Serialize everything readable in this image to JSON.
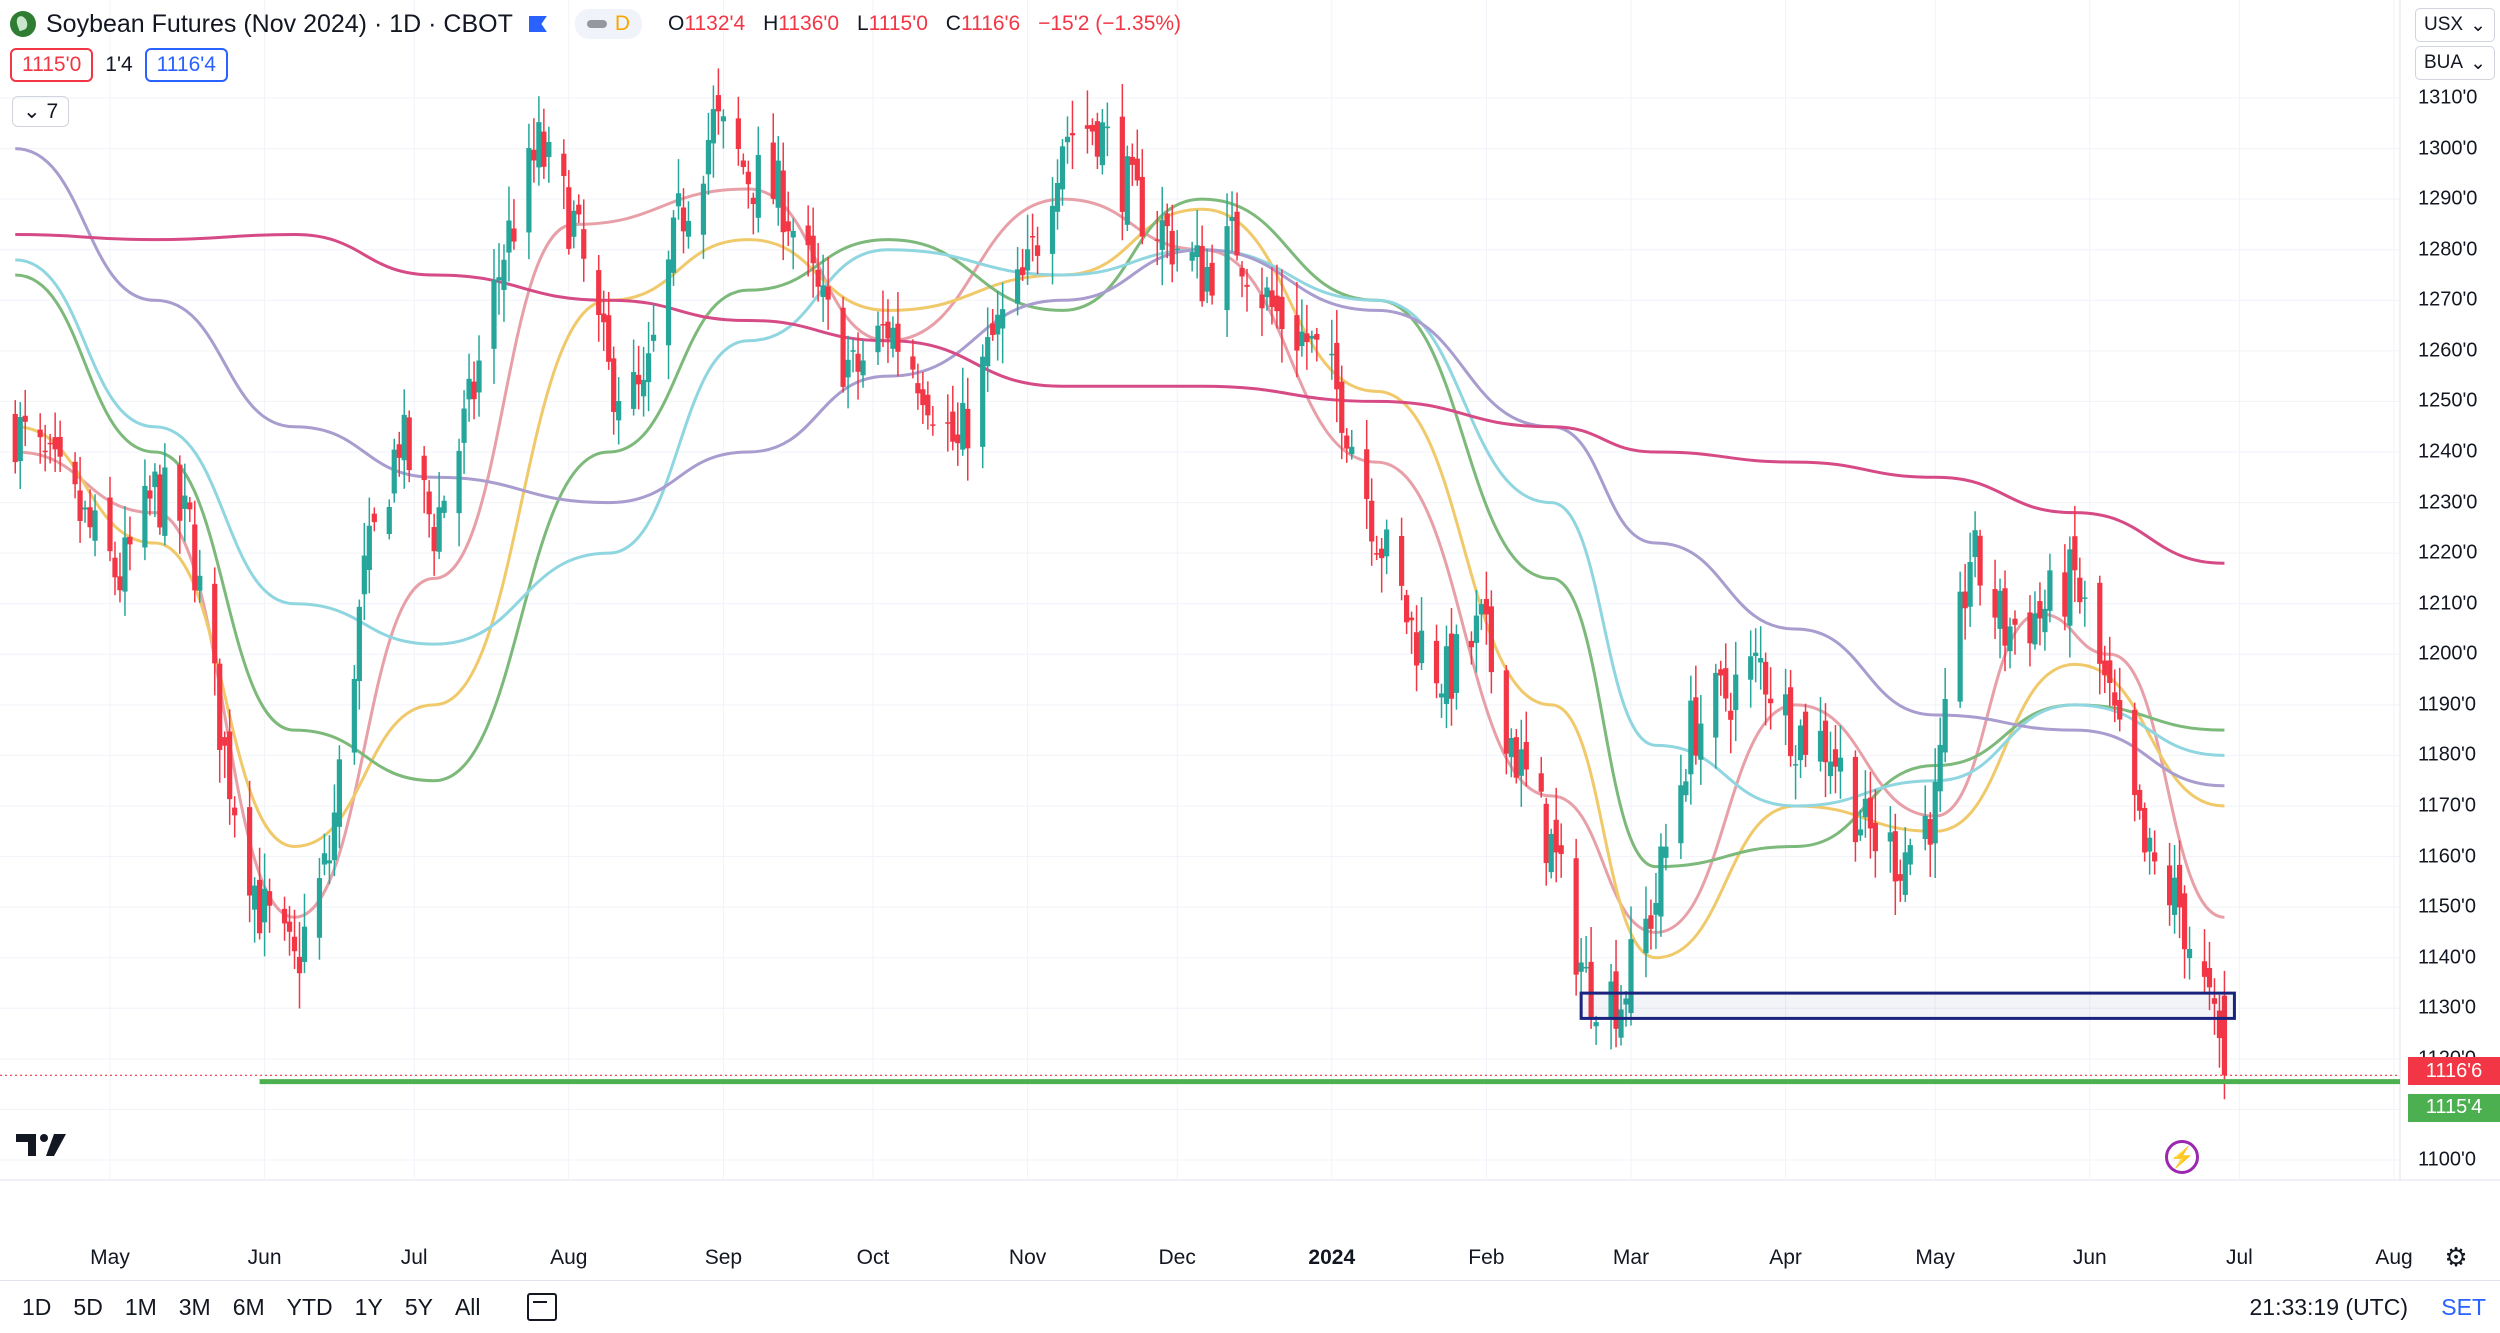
{
  "header": {
    "title": "Soybean Futures (Nov 2024) · 1D · CBOT",
    "interval_badge": "D",
    "ohlc": {
      "open_label": "O",
      "open": "1132'4",
      "high_label": "H",
      "high": "1136'0",
      "low_label": "L",
      "low": "1115'0",
      "close_label": "C",
      "close": "1116'6",
      "change": "−15'2 (−1.35%)"
    }
  },
  "quote": {
    "bid": "1115'0",
    "spread": "1'4",
    "ask": "1116'4"
  },
  "indicators_toggle": "7",
  "axis_selectors": {
    "currency": "USX",
    "unit": "BUA"
  },
  "price_tags": {
    "last": "1116'6",
    "level": "1115'4"
  },
  "bottom": {
    "ranges": [
      "1D",
      "5D",
      "1M",
      "3M",
      "6M",
      "YTD",
      "1Y",
      "5Y",
      "All"
    ],
    "clock": "21:33:19 (UTC)",
    "session": "SET"
  },
  "colors": {
    "up": "#26a69a",
    "down": "#f23645",
    "ma_fast": "#e8a0a8",
    "ma_mid": "#f0c96a",
    "ma_green": "#7cb97a",
    "ma_cyan": "#8fd6e0",
    "ma_purple": "#a99ccf",
    "ma_magenta": "#d64a86",
    "support": "#4caf50",
    "box": "#1a237e"
  },
  "chart_data": {
    "type": "candlestick",
    "title": "Soybean Futures (Nov 2024) · 1D · CBOT",
    "x_tick_labels": [
      "May",
      "Jun",
      "Jul",
      "Aug",
      "Sep",
      "Oct",
      "Nov",
      "Dec",
      "2024",
      "Feb",
      "Mar",
      "Apr",
      "May",
      "Jun",
      "Jul",
      "Aug"
    ],
    "x_tick_months": [
      "2023-05",
      "2023-06",
      "2023-07",
      "2023-08",
      "2023-09",
      "2023-10",
      "2023-11",
      "2023-12",
      "2024-01",
      "2024-02",
      "2024-03",
      "2024-04",
      "2024-05",
      "2024-06",
      "2024-07",
      "2024-08"
    ],
    "y_ticks": [
      "1100'0",
      "1110'0",
      "1120'0",
      "1130'0",
      "1140'0",
      "1150'0",
      "1160'0",
      "1170'0",
      "1180'0",
      "1190'0",
      "1200'0",
      "1210'0",
      "1220'0",
      "1230'0",
      "1240'0",
      "1250'0",
      "1260'0",
      "1270'0",
      "1280'0",
      "1290'0",
      "1300'0",
      "1310'0"
    ],
    "ylim": [
      1100,
      1313
    ],
    "close_path": [
      [
        "2023-04-12",
        1245
      ],
      [
        "2023-04-22",
        1232
      ],
      [
        "2023-05-03",
        1215
      ],
      [
        "2023-05-10",
        1232
      ],
      [
        "2023-05-17",
        1225
      ],
      [
        "2023-05-24",
        1180
      ],
      [
        "2023-05-31",
        1150
      ],
      [
        "2023-06-07",
        1138
      ],
      [
        "2023-06-14",
        1160
      ],
      [
        "2023-06-21",
        1215
      ],
      [
        "2023-06-28",
        1243
      ],
      [
        "2023-07-05",
        1225
      ],
      [
        "2023-07-12",
        1248
      ],
      [
        "2023-07-19",
        1280
      ],
      [
        "2023-07-26",
        1300
      ],
      [
        "2023-08-02",
        1285
      ],
      [
        "2023-08-09",
        1255
      ],
      [
        "2023-08-16",
        1250
      ],
      [
        "2023-08-23",
        1285
      ],
      [
        "2023-08-30",
        1305
      ],
      [
        "2023-09-06",
        1295
      ],
      [
        "2023-09-13",
        1290
      ],
      [
        "2023-09-20",
        1270
      ],
      [
        "2023-09-27",
        1255
      ],
      [
        "2023-10-04",
        1265
      ],
      [
        "2023-10-11",
        1255
      ],
      [
        "2023-10-18",
        1240
      ],
      [
        "2023-10-25",
        1262
      ],
      [
        "2023-11-01",
        1275
      ],
      [
        "2023-11-08",
        1303
      ],
      [
        "2023-11-15",
        1305
      ],
      [
        "2023-11-22",
        1290
      ],
      [
        "2023-11-29",
        1283
      ],
      [
        "2023-12-06",
        1275
      ],
      [
        "2023-12-13",
        1282
      ],
      [
        "2023-12-20",
        1268
      ],
      [
        "2023-12-27",
        1262
      ],
      [
        "2024-01-03",
        1250
      ],
      [
        "2024-01-10",
        1225
      ],
      [
        "2024-01-17",
        1205
      ],
      [
        "2024-01-24",
        1195
      ],
      [
        "2024-01-31",
        1205
      ],
      [
        "2024-02-07",
        1180
      ],
      [
        "2024-02-14",
        1162
      ],
      [
        "2024-02-21",
        1135
      ],
      [
        "2024-02-28",
        1132
      ],
      [
        "2024-03-06",
        1152
      ],
      [
        "2024-03-13",
        1185
      ],
      [
        "2024-03-20",
        1192
      ],
      [
        "2024-03-27",
        1198
      ],
      [
        "2024-04-03",
        1185
      ],
      [
        "2024-04-10",
        1182
      ],
      [
        "2024-04-17",
        1165
      ],
      [
        "2024-04-24",
        1160
      ],
      [
        "2024-05-01",
        1170
      ],
      [
        "2024-05-08",
        1220
      ],
      [
        "2024-05-15",
        1205
      ],
      [
        "2024-05-22",
        1208
      ],
      [
        "2024-05-29",
        1215
      ],
      [
        "2024-06-05",
        1190
      ],
      [
        "2024-06-12",
        1160
      ],
      [
        "2024-06-19",
        1150
      ],
      [
        "2024-06-25",
        1130
      ],
      [
        "2024-06-28",
        1116.75
      ]
    ],
    "last_close": 1116.75,
    "support_level": 1115.5,
    "support_from": "2023-05-31",
    "zone": {
      "from": "2024-02-20",
      "to": "2024-06-30",
      "low": 1128,
      "high": 1133
    },
    "series": [
      {
        "color_key": "ma_fast",
        "path": [
          [
            "2023-04-12",
            1240
          ],
          [
            "2023-05-10",
            1228
          ],
          [
            "2023-06-07",
            1148
          ],
          [
            "2023-07-05",
            1215
          ],
          [
            "2023-08-02",
            1285
          ],
          [
            "2023-09-06",
            1292
          ],
          [
            "2023-10-04",
            1262
          ],
          [
            "2023-11-08",
            1290
          ],
          [
            "2023-12-06",
            1280
          ],
          [
            "2024-01-10",
            1238
          ],
          [
            "2024-02-14",
            1172
          ],
          [
            "2024-03-06",
            1145
          ],
          [
            "2024-04-03",
            1190
          ],
          [
            "2024-05-01",
            1168
          ],
          [
            "2024-05-22",
            1208
          ],
          [
            "2024-06-05",
            1200
          ],
          [
            "2024-06-28",
            1148
          ]
        ]
      },
      {
        "color_key": "ma_mid",
        "path": [
          [
            "2023-04-12",
            1245
          ],
          [
            "2023-05-10",
            1222
          ],
          [
            "2023-06-07",
            1162
          ],
          [
            "2023-07-05",
            1190
          ],
          [
            "2023-08-09",
            1270
          ],
          [
            "2023-09-06",
            1282
          ],
          [
            "2023-10-04",
            1268
          ],
          [
            "2023-11-08",
            1275
          ],
          [
            "2023-12-06",
            1288
          ],
          [
            "2024-01-10",
            1252
          ],
          [
            "2024-02-14",
            1190
          ],
          [
            "2024-03-06",
            1140
          ],
          [
            "2024-04-03",
            1170
          ],
          [
            "2024-05-01",
            1165
          ],
          [
            "2024-05-29",
            1198
          ],
          [
            "2024-06-28",
            1170
          ]
        ]
      },
      {
        "color_key": "ma_green",
        "path": [
          [
            "2023-04-12",
            1275
          ],
          [
            "2023-05-10",
            1240
          ],
          [
            "2023-06-07",
            1185
          ],
          [
            "2023-07-05",
            1175
          ],
          [
            "2023-08-09",
            1240
          ],
          [
            "2023-09-06",
            1272
          ],
          [
            "2023-10-04",
            1282
          ],
          [
            "2023-11-08",
            1268
          ],
          [
            "2023-12-06",
            1290
          ],
          [
            "2024-01-10",
            1270
          ],
          [
            "2024-02-14",
            1215
          ],
          [
            "2024-03-06",
            1158
          ],
          [
            "2024-04-03",
            1162
          ],
          [
            "2024-05-01",
            1178
          ],
          [
            "2024-05-29",
            1190
          ],
          [
            "2024-06-28",
            1185
          ]
        ]
      },
      {
        "color_key": "ma_cyan",
        "path": [
          [
            "2023-04-12",
            1278
          ],
          [
            "2023-05-10",
            1245
          ],
          [
            "2023-06-07",
            1210
          ],
          [
            "2023-07-05",
            1202
          ],
          [
            "2023-08-09",
            1220
          ],
          [
            "2023-09-06",
            1262
          ],
          [
            "2023-10-04",
            1280
          ],
          [
            "2023-11-08",
            1275
          ],
          [
            "2023-12-06",
            1280
          ],
          [
            "2024-01-10",
            1270
          ],
          [
            "2024-02-14",
            1230
          ],
          [
            "2024-03-06",
            1182
          ],
          [
            "2024-04-03",
            1170
          ],
          [
            "2024-05-01",
            1175
          ],
          [
            "2024-05-29",
            1190
          ],
          [
            "2024-06-28",
            1180
          ]
        ]
      },
      {
        "color_key": "ma_purple",
        "path": [
          [
            "2023-04-12",
            1300
          ],
          [
            "2023-05-10",
            1270
          ],
          [
            "2023-06-07",
            1245
          ],
          [
            "2023-07-05",
            1235
          ],
          [
            "2023-08-09",
            1230
          ],
          [
            "2023-09-06",
            1240
          ],
          [
            "2023-10-04",
            1255
          ],
          [
            "2023-11-08",
            1270
          ],
          [
            "2023-12-06",
            1280
          ],
          [
            "2024-01-10",
            1268
          ],
          [
            "2024-02-14",
            1245
          ],
          [
            "2024-03-06",
            1222
          ],
          [
            "2024-04-03",
            1205
          ],
          [
            "2024-05-01",
            1188
          ],
          [
            "2024-05-29",
            1185
          ],
          [
            "2024-06-28",
            1174
          ]
        ]
      },
      {
        "color_key": "ma_magenta",
        "path": [
          [
            "2023-04-12",
            1283
          ],
          [
            "2023-05-10",
            1282
          ],
          [
            "2023-06-07",
            1283
          ],
          [
            "2023-07-05",
            1275
          ],
          [
            "2023-08-09",
            1270
          ],
          [
            "2023-09-06",
            1266
          ],
          [
            "2023-10-04",
            1262
          ],
          [
            "2023-11-08",
            1253
          ],
          [
            "2023-12-06",
            1253
          ],
          [
            "2024-01-10",
            1250
          ],
          [
            "2024-02-14",
            1245
          ],
          [
            "2024-03-06",
            1240
          ],
          [
            "2024-04-03",
            1238
          ],
          [
            "2024-05-01",
            1235
          ],
          [
            "2024-05-29",
            1228
          ],
          [
            "2024-06-28",
            1218
          ]
        ]
      }
    ]
  }
}
